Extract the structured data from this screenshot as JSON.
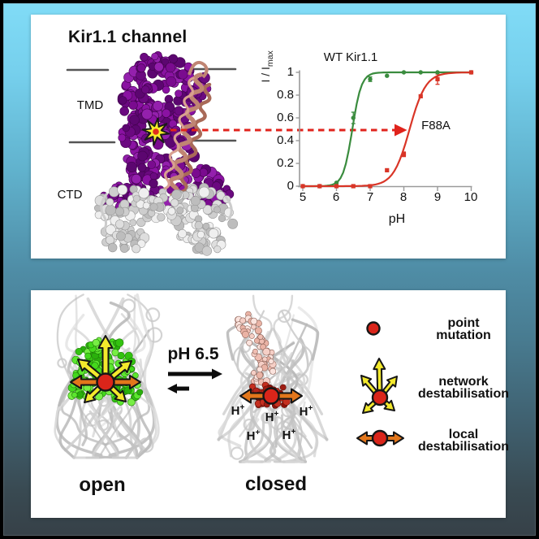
{
  "colors": {
    "background_top": "#81dcf7",
    "background_bottom": "#364047",
    "panel": "#ffffff",
    "wt_green": "#3a8c3e",
    "f88a_red": "#d93527",
    "dashed_arrow_red": "#e0231c",
    "star_yellow": "#f6ee2a",
    "mutation_dot_red": "#da251a",
    "network_arrow_yellow": "#f3e92c",
    "local_arrow_orange": "#e2761b",
    "tmd_purple": "#7a0b8f",
    "helix_salmon": "#c08573",
    "ctd_gray": "#d9d9d9",
    "open_cluster_green": "#4ad41e",
    "closed_cluster_pink": "#f2c5ba",
    "closed_cluster_red": "#b3241a",
    "cartoon_gray": "#c9c9c9",
    "axis_gray": "#9a9a9a"
  },
  "top_panel": {
    "title": "Kir1.1 channel",
    "tmd_label": "TMD",
    "ctd_label": "CTD",
    "mutation_site_icon": "star-icon"
  },
  "chart_data": {
    "type": "scatter",
    "title": "",
    "xlabel": "pH",
    "ylabel_main": "I / I",
    "ylabel_sub": "max",
    "xlim": [
      5,
      10
    ],
    "ylim": [
      0,
      1
    ],
    "grid": false,
    "x_tick_labels": [
      "5",
      "6",
      "7",
      "8",
      "9",
      "10"
    ],
    "y_tick_labels": [
      "0",
      "0.2",
      "0.4",
      "0.6",
      "0.8",
      "1"
    ],
    "dashed_shift_arrow_at_y": 0.5,
    "series": [
      {
        "name": "WT Kir1.1",
        "color": "#3a8c3e",
        "marker": "circle",
        "x": [
          5,
          5.5,
          6,
          6.5,
          7,
          7.5,
          8,
          8.5,
          9,
          10
        ],
        "y": [
          0,
          0,
          0.03,
          0.6,
          0.94,
          0.97,
          1.0,
          1.0,
          1.0,
          1.0
        ],
        "fit_sigmoid": {
          "midpoint": 6.47,
          "hill": 3.2
        }
      },
      {
        "name": "F88A",
        "color": "#d93527",
        "marker": "square",
        "x": [
          5,
          5.5,
          6,
          6.5,
          7,
          7.5,
          8,
          8.5,
          9,
          10
        ],
        "y": [
          0,
          0,
          0,
          0,
          0,
          0.14,
          0.28,
          0.79,
          0.94,
          1.0
        ],
        "fit_sigmoid": {
          "midpoint": 8.17,
          "hill": 1.8
        }
      }
    ],
    "error_bars": [
      {
        "series": 0,
        "x": 6.5,
        "err": 0.05
      },
      {
        "series": 0,
        "x": 7,
        "err": 0.02
      },
      {
        "series": 1,
        "x": 8,
        "err": 0.02
      },
      {
        "series": 1,
        "x": 9,
        "err": 0.045
      }
    ]
  },
  "bottom_panel": {
    "equilibrium_label": "pH 6.5",
    "open_label": "open",
    "closed_label": "closed",
    "proton": {
      "base": "H",
      "sup": "+"
    },
    "proton_count": 5,
    "legend": [
      {
        "icon": "point-mutation-icon",
        "line1": "point",
        "line2": "mutation"
      },
      {
        "icon": "network-destabilisation-icon",
        "line1": "network",
        "line2": "destabilisation"
      },
      {
        "icon": "local-destabilisation-icon",
        "line1": "local",
        "line2": "destabilisation"
      }
    ]
  }
}
